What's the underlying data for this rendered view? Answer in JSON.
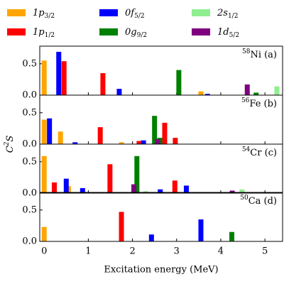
{
  "chart_data": [
    {
      "type": "bar",
      "label": "58Ni (a)",
      "xlim": [
        -0.1,
        5.4
      ],
      "xticks": [
        0,
        1,
        2,
        3,
        4,
        5
      ],
      "ylim": [
        0,
        0.78
      ],
      "yticks": [
        {
          "value": 0,
          "label": "0.0"
        },
        0.5
      ],
      "series": [
        {
          "name": "1p3/2",
          "color": "#ffa500",
          "x": [
            0,
            3.55
          ],
          "values": [
            0.55,
            0.06
          ]
        },
        {
          "name": "1p1/2",
          "color": "#ff0000",
          "x": [
            0.45,
            1.33
          ],
          "values": [
            0.54,
            0.35
          ]
        },
        {
          "name": "0f5/2",
          "color": "#0000ff",
          "x": [
            0.33,
            1.7,
            3.7
          ],
          "values": [
            0.69,
            0.1,
            0.02
          ]
        },
        {
          "name": "0g9/2",
          "color": "#008000",
          "x": [
            3.05,
            4.8
          ],
          "values": [
            0.4,
            0.04
          ]
        },
        {
          "name": "2s1/2",
          "color": "#90ee90",
          "x": [
            5.27
          ],
          "values": [
            0.14
          ]
        },
        {
          "name": "1d5/2",
          "color": "#800080",
          "x": [
            4.6
          ],
          "values": [
            0.17
          ]
        }
      ]
    },
    {
      "type": "bar",
      "label": "56Fe (b)",
      "xlim": [
        -0.1,
        5.4
      ],
      "xticks": [
        0,
        1,
        2,
        3,
        4,
        5
      ],
      "ylim": [
        0,
        0.78
      ],
      "yticks": [
        {
          "value": 0,
          "label": "0.0"
        },
        0.5
      ],
      "series": [
        {
          "name": "1p3/2",
          "color": "#ffa500",
          "x": [
            0,
            0.37,
            1.75
          ],
          "values": [
            0.39,
            0.2,
            0.03
          ]
        },
        {
          "name": "1p1/2",
          "color": "#ff0000",
          "x": [
            1.27,
            2.15,
            2.73,
            2.97
          ],
          "values": [
            0.27,
            0.05,
            0.34,
            0.1
          ]
        },
        {
          "name": "0f5/2",
          "color": "#0000ff",
          "x": [
            0.12,
            0.7,
            2.25
          ],
          "values": [
            0.41,
            0.03,
            0.06
          ]
        },
        {
          "name": "0g9/2",
          "color": "#008000",
          "x": [
            2.5,
            2.62
          ],
          "values": [
            0.45,
            0.1
          ]
        },
        {
          "name": "1d5/2",
          "color": "#800080",
          "x": [
            2.57
          ],
          "values": [
            0.08
          ]
        }
      ]
    },
    {
      "type": "bar",
      "label": "54Cr (c)",
      "ylabel": "C2S",
      "xlim": [
        -0.1,
        5.4
      ],
      "xticks": [
        0,
        1,
        2,
        3,
        4,
        5
      ],
      "ylim": [
        0,
        0.78
      ],
      "yticks": [
        {
          "value": 0,
          "label": "0.0"
        },
        0.5
      ],
      "series": [
        {
          "name": "1p3/2",
          "color": "#ffa500",
          "x": [
            0,
            0.55
          ],
          "values": [
            0.59,
            0.11
          ]
        },
        {
          "name": "1p1/2",
          "color": "#ff0000",
          "x": [
            0.23,
            1.49,
            2.96
          ],
          "values": [
            0.17,
            0.46,
            0.2
          ]
        },
        {
          "name": "0f5/2",
          "color": "#0000ff",
          "x": [
            0.5,
            0.87,
            2.63,
            3.22
          ],
          "values": [
            0.23,
            0.08,
            0.06,
            0.12
          ]
        },
        {
          "name": "0g9/2",
          "color": "#008000",
          "x": [
            2.1
          ],
          "values": [
            0.59
          ]
        },
        {
          "name": "2s1/2",
          "color": "#90ee90",
          "x": [
            2.3,
            4.48
          ],
          "values": [
            0.03,
            0.06
          ]
        },
        {
          "name": "1d5/2",
          "color": "#800080",
          "x": [
            2.03,
            4.26
          ],
          "values": [
            0.14,
            0.04
          ]
        }
      ]
    },
    {
      "type": "bar",
      "label": "50Ca (d)",
      "xlabel": "Excitation energy (MeV)",
      "xlim": [
        -0.1,
        5.4
      ],
      "xticks": [
        0,
        1,
        2,
        3,
        4,
        5
      ],
      "ylim": [
        0,
        0.78
      ],
      "yticks": [
        {
          "value": 0,
          "label": "0.0"
        },
        0.5
      ],
      "series": [
        {
          "name": "1p3/2",
          "color": "#ffa500",
          "x": [
            0
          ],
          "values": [
            0.23
          ]
        },
        {
          "name": "1p1/2",
          "color": "#ff0000",
          "x": [
            1.75
          ],
          "values": [
            0.47
          ]
        },
        {
          "name": "0f5/2",
          "color": "#0000ff",
          "x": [
            2.43,
            3.55
          ],
          "values": [
            0.11,
            0.35
          ]
        },
        {
          "name": "0g9/2",
          "color": "#008000",
          "x": [
            4.25
          ],
          "values": [
            0.15
          ]
        }
      ]
    }
  ]
}
